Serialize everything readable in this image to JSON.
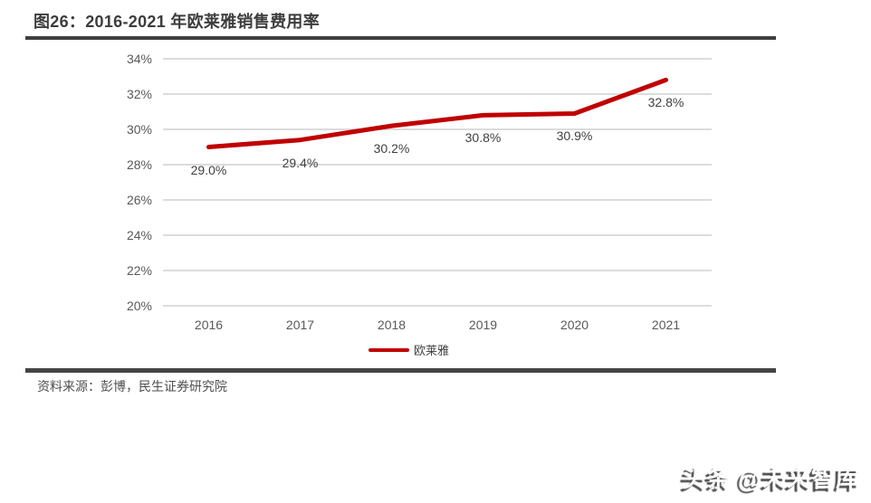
{
  "header": {
    "title": "图26：2016-2021 年欧莱雅销售费用率"
  },
  "chart_data": {
    "type": "line",
    "title": "2016-2021 年欧莱雅销售费用率",
    "categories": [
      "2016",
      "2017",
      "2018",
      "2019",
      "2020",
      "2021"
    ],
    "series": [
      {
        "name": "欧莱雅",
        "values": [
          29.0,
          29.4,
          30.2,
          30.8,
          30.9,
          32.8
        ],
        "labels": [
          "29.0%",
          "29.4%",
          "30.2%",
          "30.8%",
          "30.9%",
          "32.8%"
        ],
        "color": "#c00000"
      }
    ],
    "ylim": [
      20,
      34
    ],
    "ytick_step": 2,
    "ytick_labels": [
      "34%",
      "32%",
      "30%",
      "28%",
      "26%",
      "24%",
      "22%",
      "20%"
    ],
    "grid": true,
    "legend_position": "bottom"
  },
  "footer": {
    "source": "资料来源：彭博，民生证券研究院"
  },
  "watermark": {
    "text": "头条 @未来智库"
  },
  "colors": {
    "line": "#c00000",
    "gridline": "#dcdcdc",
    "rule": "#3f3f3f",
    "tick_text": "#595959",
    "label_text": "#404040"
  }
}
